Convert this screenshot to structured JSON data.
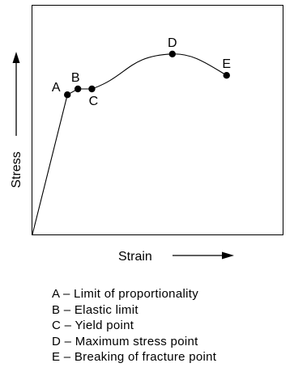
{
  "chart_data": {
    "type": "line",
    "title": "",
    "xlabel": "Strain",
    "ylabel": "Stress",
    "grid": false,
    "points": [
      {
        "label": "A",
        "x": 0.2,
        "y": 0.72
      },
      {
        "label": "B",
        "x": 0.26,
        "y": 0.75
      },
      {
        "label": "C",
        "x": 0.34,
        "y": 0.75
      },
      {
        "label": "D",
        "x": 0.8,
        "y": 0.93
      },
      {
        "label": "E",
        "x": 1.11,
        "y": 0.82
      }
    ],
    "legend": [
      {
        "key": "A",
        "text": "A – Limit of proportionality"
      },
      {
        "key": "B",
        "text": "B – Elastic limit"
      },
      {
        "key": "C",
        "text": "C – Yield point"
      },
      {
        "key": "D",
        "text": "D – Maximum stress point"
      },
      {
        "key": "E",
        "text": "E – Breaking of fracture point"
      }
    ]
  }
}
